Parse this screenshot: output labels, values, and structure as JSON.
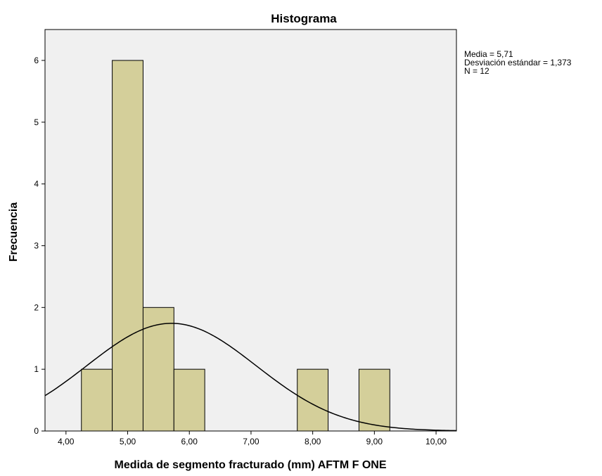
{
  "chart_data": {
    "type": "bar",
    "title": "Histograma",
    "xlabel": "Medida de segmento fracturado (mm) AFTM F ONE",
    "ylabel": "Frecuencia",
    "bins": [
      {
        "x0": 4.25,
        "x1": 4.75,
        "count": 1
      },
      {
        "x0": 4.75,
        "x1": 5.25,
        "count": 6
      },
      {
        "x0": 5.25,
        "x1": 5.75,
        "count": 2
      },
      {
        "x0": 5.75,
        "x1": 6.25,
        "count": 1
      },
      {
        "x0": 7.75,
        "x1": 8.25,
        "count": 1
      },
      {
        "x0": 8.75,
        "x1": 9.25,
        "count": 1
      }
    ],
    "xlim": [
      3.66,
      10.33
    ],
    "ylim": [
      0,
      6.5
    ],
    "xticks": [
      4,
      5,
      6,
      7,
      8,
      9,
      10
    ],
    "xtick_labels": [
      "4,00",
      "5,00",
      "6,00",
      "7,00",
      "8,00",
      "9,00",
      "10,00"
    ],
    "yticks": [
      0,
      1,
      2,
      3,
      4,
      5,
      6
    ],
    "ytick_labels": [
      "0",
      "1",
      "2",
      "3",
      "4",
      "5",
      "6"
    ],
    "normal_curve": {
      "mean": 5.71,
      "sd": 1.373,
      "n": 12,
      "bin_width": 0.5
    },
    "colors": {
      "bar_fill": "#d4cf9a",
      "bar_stroke": "#000000",
      "plot_bg": "#f0f0f0",
      "curve": "#000000"
    }
  },
  "stats": {
    "mean_line": "Media = 5,71",
    "sd_line": "Desviación estándar = 1,373",
    "n_line": "N = 12"
  }
}
